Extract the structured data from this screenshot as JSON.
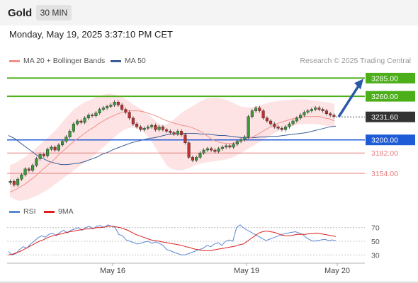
{
  "header": {
    "title": "Gold",
    "timeframe": "30 MIN"
  },
  "datetime": "Monday, May 19, 2025 3:37:10 PM CET",
  "legend": {
    "bollinger": "MA 20 + Bollinger Bands",
    "ma50": "MA 50",
    "rsi": "RSI",
    "rsi_ma": "9MA"
  },
  "copyright": "Research © 2025 Trading Central",
  "colors": {
    "resistance": "#4caf1a",
    "support": "#1e5bd6",
    "support_light": "#e57b7b",
    "current": "#333333",
    "band_fill": "#fde0e0",
    "ma20": "#f0908a",
    "ma50": "#3a5d9a",
    "rsi": "#5b86d6",
    "rsi_ma": "#dd1f1f",
    "arrow": "#2a5aa8"
  },
  "chart_data": [
    {
      "type": "line",
      "title": "Gold",
      "ylim": [
        3115,
        3300
      ],
      "x_ticks": [
        "May 16",
        "May 19",
        "May 20"
      ],
      "levels": [
        {
          "label": "3285.00",
          "value": 3285.0,
          "kind": "resistance"
        },
        {
          "label": "3260.00",
          "value": 3260.0,
          "kind": "resistance"
        },
        {
          "label": "3231.60",
          "value": 3231.6,
          "kind": "current"
        },
        {
          "label": "3200.00",
          "value": 3200.0,
          "kind": "support"
        },
        {
          "label": "3182.00",
          "value": 3182.0,
          "kind": "support_light"
        },
        {
          "label": "3154.00",
          "value": 3154.0,
          "kind": "support_light"
        }
      ],
      "close": [
        3143,
        3138,
        3146,
        3152,
        3160,
        3158,
        3165,
        3174,
        3180,
        3178,
        3187,
        3190,
        3186,
        3193,
        3198,
        3204,
        3212,
        3222,
        3226,
        3224,
        3230,
        3234,
        3233,
        3237,
        3242,
        3244,
        3246,
        3248,
        3252,
        3248,
        3242,
        3238,
        3230,
        3222,
        3218,
        3214,
        3216,
        3218,
        3220,
        3214,
        3218,
        3214,
        3212,
        3210,
        3208,
        3212,
        3207,
        3196,
        3176,
        3172,
        3176,
        3182,
        3186,
        3188,
        3186,
        3184,
        3188,
        3190,
        3192,
        3190,
        3194,
        3198,
        3200,
        3204,
        3232,
        3240,
        3244,
        3240,
        3230,
        3226,
        3222,
        3218,
        3216,
        3214,
        3218,
        3222,
        3226,
        3230,
        3234,
        3238,
        3240,
        3242,
        3244,
        3242,
        3240,
        3236,
        3234,
        3232
      ],
      "ma20": [
        3128,
        3131,
        3135,
        3139,
        3144,
        3149,
        3155,
        3161,
        3167,
        3173,
        3180,
        3186,
        3192,
        3198,
        3203,
        3208,
        3213,
        3217,
        3222,
        3226,
        3230,
        3233,
        3236,
        3238,
        3240,
        3240,
        3240,
        3239,
        3237,
        3235,
        3232,
        3229,
        3226,
        3224,
        3222,
        3220,
        3219,
        3217,
        3214,
        3211,
        3206,
        3201,
        3198,
        3196,
        3195,
        3195,
        3196,
        3199,
        3201,
        3203,
        3206,
        3210,
        3214,
        3218,
        3221,
        3224,
        3226,
        3228,
        3230,
        3231,
        3232,
        3232,
        3232,
        3232,
        3230,
        3229,
        3226
      ],
      "bb_upper": [
        3165,
        3168,
        3172,
        3176,
        3181,
        3187,
        3193,
        3199,
        3205,
        3211,
        3219,
        3227,
        3235,
        3242,
        3247,
        3251,
        3254,
        3257,
        3260,
        3262,
        3264,
        3263,
        3261,
        3258,
        3254,
        3249,
        3245,
        3241,
        3236,
        3230,
        3224,
        3220,
        3222,
        3226,
        3232,
        3238,
        3242,
        3246,
        3250,
        3254,
        3257,
        3258,
        3258,
        3257,
        3255,
        3252,
        3249,
        3246,
        3245,
        3245,
        3246,
        3248,
        3250,
        3252,
        3253,
        3254,
        3255,
        3255,
        3256,
        3256,
        3256,
        3255,
        3254,
        3253,
        3252,
        3251,
        3250
      ],
      "bb_lower": [
        3122,
        3118,
        3116,
        3117,
        3119,
        3122,
        3125,
        3129,
        3133,
        3138,
        3143,
        3148,
        3153,
        3158,
        3163,
        3168,
        3173,
        3178,
        3184,
        3190,
        3196,
        3202,
        3208,
        3213,
        3216,
        3217,
        3216,
        3212,
        3205,
        3196,
        3185,
        3174,
        3164,
        3160,
        3158,
        3158,
        3160,
        3163,
        3166,
        3168,
        3169,
        3170,
        3171,
        3172,
        3173,
        3175,
        3178,
        3182,
        3186,
        3190,
        3194,
        3198,
        3202,
        3206,
        3210,
        3213,
        3216,
        3218,
        3220,
        3222,
        3222,
        3222,
        3222,
        3221,
        3220,
        3219,
        3218
      ],
      "ma50": [
        3206,
        3202,
        3196,
        3190,
        3184,
        3178,
        3174,
        3170,
        3168,
        3166,
        3166,
        3167,
        3168,
        3170,
        3173,
        3176,
        3180,
        3183,
        3187,
        3190,
        3193,
        3196,
        3198,
        3200,
        3202,
        3203,
        3205,
        3207,
        3208,
        3208,
        3209,
        3209,
        3209,
        3208,
        3208,
        3207,
        3206,
        3206,
        3205,
        3204,
        3203,
        3203,
        3203,
        3204,
        3204,
        3205,
        3205,
        3206,
        3207,
        3208,
        3209,
        3210,
        3212,
        3214,
        3216,
        3218,
        3219
      ]
    },
    {
      "type": "line",
      "title": "RSI",
      "ylim": [
        20,
        80
      ],
      "y_ticks": [
        70,
        50,
        30
      ],
      "series": [
        {
          "name": "RSI",
          "values": [
            35,
            30,
            32,
            38,
            42,
            40,
            46,
            50,
            55,
            58,
            56,
            60,
            62,
            58,
            63,
            66,
            62,
            66,
            68,
            70,
            66,
            70,
            72,
            68,
            72,
            73,
            70,
            74,
            72,
            70,
            60,
            58,
            52,
            50,
            48,
            46,
            47,
            49,
            50,
            47,
            49,
            47,
            44,
            38,
            36,
            34,
            32,
            30,
            30,
            32,
            34,
            36,
            38,
            40,
            44,
            42,
            46,
            48,
            44,
            50,
            52,
            50,
            70,
            74,
            69,
            66,
            63,
            60,
            57,
            54,
            51,
            53,
            55,
            57,
            59,
            61,
            62,
            63,
            64,
            62,
            60,
            55,
            52,
            50,
            51,
            52,
            53,
            51,
            52,
            51
          ]
        },
        {
          "name": "9MA",
          "values": [
            30,
            31,
            33,
            35,
            38,
            41,
            44,
            47,
            50,
            52,
            55,
            57,
            59,
            60,
            61,
            63,
            64,
            65,
            66,
            67,
            68,
            68,
            69,
            70,
            70,
            71,
            72,
            72,
            71,
            70,
            68,
            66,
            63,
            60,
            58,
            56,
            54,
            52,
            51,
            50,
            49,
            48,
            47,
            46,
            45,
            44,
            42,
            41,
            39,
            38,
            37,
            36,
            36,
            37,
            38,
            39,
            40,
            41,
            42,
            43,
            45,
            46,
            50,
            54,
            58,
            62,
            64,
            65,
            64,
            63,
            61,
            59,
            58,
            58,
            59,
            60,
            60,
            60,
            61,
            61,
            62,
            61,
            60,
            59,
            58,
            57
          ]
        }
      ]
    }
  ]
}
